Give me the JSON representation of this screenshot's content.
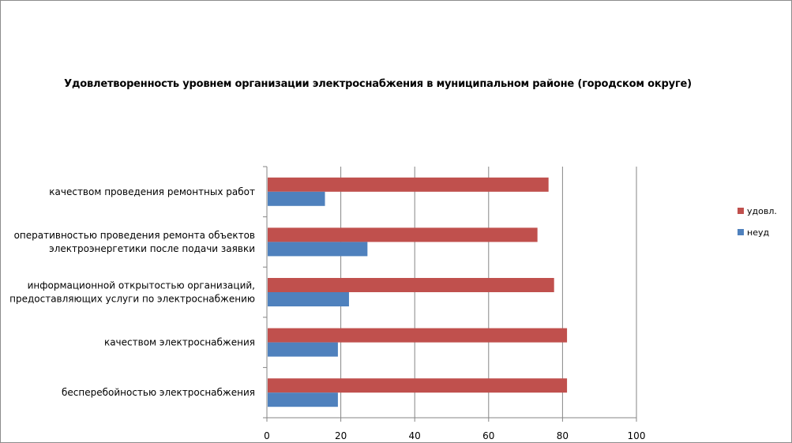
{
  "chart_data": {
    "type": "bar",
    "orientation": "horizontal",
    "title": "Удовлетворенность уровнем организации электроснабжения в муниципальном районе (городском округе)",
    "categories": [
      [
        "качеством  проведения  ремонтных  работ"
      ],
      [
        "оперативностью  проведения  ремонта  объектов",
        "электроэнергетики  после подачи  заявки"
      ],
      [
        "информационной  открытостью  организаций,",
        "предоставляющих  услуги по электроснабжению"
      ],
      [
        "качеством  электроснабжения"
      ],
      [
        "бесперебойностью  электроснабжения"
      ]
    ],
    "series": [
      {
        "name": "удовл.",
        "color": "#c0504d",
        "values": [
          76,
          73,
          77.5,
          81,
          81
        ]
      },
      {
        "name": "неуд",
        "color": "#4f81bd",
        "values": [
          15.5,
          27,
          22,
          19,
          19
        ]
      }
    ],
    "xlim": [
      0,
      100
    ],
    "xticks": [
      0,
      20,
      40,
      60,
      80,
      100
    ],
    "grid": true,
    "legend_position": "right",
    "legend_order": [
      "удовл.",
      "неуд"
    ]
  }
}
